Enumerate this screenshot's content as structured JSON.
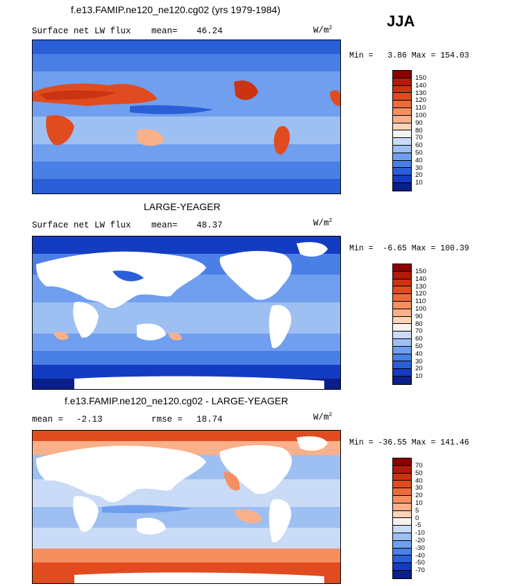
{
  "season": "JJA",
  "units_base": "W/m",
  "units_exp": "2",
  "panels": [
    {
      "title": "f.e13.FAMIP.ne120_ne120.cg02 (yrs 1979-1984)",
      "left_label": "Surface net LW flux",
      "stat_label": "mean=",
      "stat_value": "46.24",
      "minmax": "Min =   3.86 Max = 154.03"
    },
    {
      "title": "LARGE-YEAGER",
      "left_label": "Surface net LW flux",
      "stat_label": "mean=",
      "stat_value": "48.37",
      "minmax": "Min =  -6.65 Max = 100.39"
    },
    {
      "title": "f.e13.FAMIP.ne120_ne120.cg02 - LARGE-YEAGER",
      "left_label": "mean =",
      "left_value": "-2.13",
      "stat_label": "rmse =",
      "stat_value": "18.74",
      "minmax": "Min = -36.55 Max = 141.46"
    }
  ],
  "colorbar_abs": {
    "labels": [
      "150",
      "140",
      "130",
      "120",
      "110",
      "100",
      "90",
      "80",
      "70",
      "60",
      "50",
      "40",
      "30",
      "20",
      "10"
    ],
    "colors": [
      "#8b0000",
      "#b21a0a",
      "#cc3311",
      "#e04c1f",
      "#ec6a3c",
      "#f58f60",
      "#fab089",
      "#fdd4b8",
      "#f6f3ef",
      "#c9dbf6",
      "#9ebff2",
      "#6f9fee",
      "#4a7fe6",
      "#2b5fd8",
      "#143cc2",
      "#0a1f8a"
    ]
  },
  "colorbar_diff": {
    "labels": [
      "70",
      "50",
      "40",
      "30",
      "20",
      "10",
      "5",
      "0",
      "-5",
      "-10",
      "-20",
      "-30",
      "-40",
      "-50",
      "-70"
    ],
    "colors": [
      "#8b0000",
      "#b21a0a",
      "#cc3311",
      "#e04c1f",
      "#ec6a3c",
      "#f58f60",
      "#fab089",
      "#fdd4b8",
      "#f6f3ef",
      "#c9dbf6",
      "#9ebff2",
      "#6f9fee",
      "#4a7fe6",
      "#2b5fd8",
      "#143cc2",
      "#0a1f8a"
    ]
  }
}
